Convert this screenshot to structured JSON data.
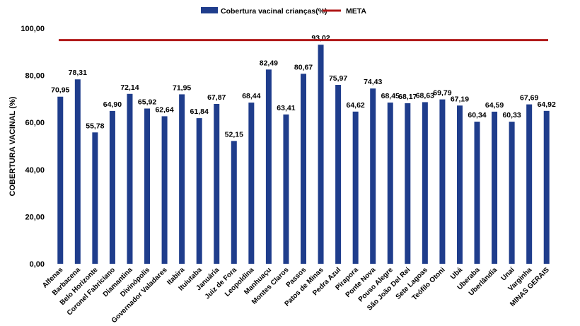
{
  "chart_data": {
    "type": "bar",
    "ylabel": "COBERTURA VACINAL (%)",
    "xlabel": "",
    "ylim": [
      0,
      100
    ],
    "yticks": [
      "0,00",
      "20,00",
      "40,00",
      "60,00",
      "80,00",
      "100,00"
    ],
    "legend_position": "top-center",
    "grid": false,
    "categories": [
      "Alfenas",
      "Barbacena",
      "Belo Horizonte",
      "Coronel Fabriciano",
      "Diamantina",
      "Divinópolis",
      "Governador Valadares",
      "Itabira",
      "Ituiutaba",
      "Januária",
      "Juiz de Fora",
      "Leopoldina",
      "Manhuaçu",
      "Montes Claros",
      "Passos",
      "Patos de Minas",
      "Pedra Azul",
      "Pirapora",
      "Ponte Nova",
      "Pouso Alegre",
      "São João Del Rei",
      "Sete Lagoas",
      "Teófilo Otoni",
      "Ubá",
      "Uberaba",
      "Uberlândia",
      "Unaí",
      "Varginha",
      "MINAS GERAIS"
    ],
    "series": [
      {
        "name": "Cobertura vacinal crianças(%)",
        "type": "bar",
        "color": "#1f3d8c",
        "values": [
          70.95,
          78.31,
          55.78,
          64.9,
          72.14,
          65.92,
          62.64,
          71.95,
          61.84,
          67.87,
          52.15,
          68.44,
          82.49,
          63.41,
          80.67,
          93.02,
          75.97,
          64.62,
          74.43,
          68.45,
          68.17,
          68.63,
          69.79,
          67.19,
          60.34,
          64.59,
          60.33,
          67.69,
          64.92
        ],
        "labels": [
          "70,95",
          "78,31",
          "55,78",
          "64,90",
          "72,14",
          "65,92",
          "62,64",
          "71,95",
          "61,84",
          "67,87",
          "52,15",
          "68,44",
          "82,49",
          "63,41",
          "80,67",
          "93,02",
          "75,97",
          "64,62",
          "74,43",
          "68,45",
          "68,17",
          "68,63",
          "69,79",
          "67,19",
          "60,34",
          "64,59",
          "60,33",
          "67,69",
          "64,92"
        ]
      },
      {
        "name": "META",
        "type": "line",
        "color": "#b01818",
        "value": 95
      }
    ]
  }
}
